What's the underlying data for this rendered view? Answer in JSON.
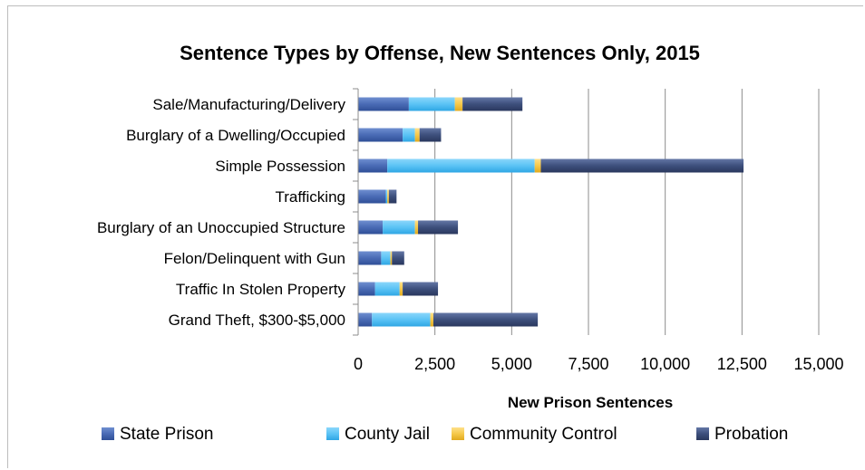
{
  "chart_data": {
    "type": "bar",
    "orientation": "horizontal",
    "stacked": true,
    "title": "Sentence Types by Offense, New Sentences Only, 2015",
    "xlabel": "New Prison Sentences",
    "ylabel": "",
    "xlim": [
      0,
      15000
    ],
    "xticks": [
      "0",
      "2,500",
      "5,000",
      "7,500",
      "10,000",
      "12,500",
      "15,000"
    ],
    "xtick_values": [
      0,
      2500,
      5000,
      7500,
      10000,
      12500,
      15000
    ],
    "grid": true,
    "legend_position": "bottom",
    "categories": [
      "Sale/Manufacturing/Delivery",
      "Burglary of a Dwelling/Occupied",
      "Simple Possession",
      "Trafficking",
      "Burglary of an Unoccupied Structure",
      "Felon/Delinquent with Gun",
      "Traffic In Stolen Property",
      "Grand Theft, $300-$5,000"
    ],
    "series": [
      {
        "name": "State Prison",
        "color": "#4a6bb5",
        "values": [
          1650,
          1450,
          950,
          900,
          800,
          750,
          550,
          450
        ]
      },
      {
        "name": "County Jail",
        "color": "#5bc3f5",
        "values": [
          1500,
          400,
          4800,
          50,
          1050,
          300,
          800,
          1900
        ]
      },
      {
        "name": "Community Control",
        "color": "#f5c84a",
        "values": [
          250,
          150,
          200,
          50,
          100,
          50,
          100,
          100
        ]
      },
      {
        "name": "Probation",
        "color": "#3d4f7c",
        "values": [
          1950,
          700,
          6600,
          250,
          1300,
          400,
          1150,
          3400
        ]
      }
    ]
  }
}
